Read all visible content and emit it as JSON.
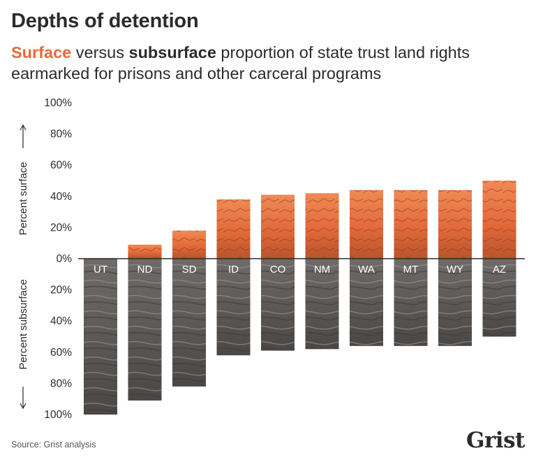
{
  "header": {
    "title": "Depths of detention",
    "subtitle_surface": "Surface",
    "subtitle_mid": " versus ",
    "subtitle_subsurface": "subsurface",
    "subtitle_rest": " proportion of state trust land rights earmarked for prisons and other carceral programs"
  },
  "footer": {
    "source": "Source: Grist analysis",
    "logo": "Grist"
  },
  "colors": {
    "surface": "#e8683a",
    "subsurface": "#5b5856",
    "text": "#2b2b2b"
  },
  "chart_data": {
    "type": "bar",
    "title": "Depths of detention",
    "ylabel_up": "Percent surface",
    "ylabel_down": "Percent subsurface",
    "y_ticks_up": [
      "100%",
      "80%",
      "60%",
      "40%",
      "20%"
    ],
    "y_tick_zero": "0%",
    "y_ticks_down": [
      "20%",
      "40%",
      "60%",
      "80%",
      "100%"
    ],
    "ylim": [
      -100,
      100
    ],
    "categories": [
      "UT",
      "ND",
      "SD",
      "ID",
      "CO",
      "NM",
      "WA",
      "MT",
      "WY",
      "AZ"
    ],
    "series": [
      {
        "name": "Surface",
        "values": [
          0,
          9,
          18,
          38,
          41,
          42,
          44,
          44,
          44,
          50
        ]
      },
      {
        "name": "Subsurface",
        "values": [
          100,
          91,
          82,
          62,
          59,
          58,
          56,
          56,
          56,
          50
        ]
      }
    ]
  }
}
